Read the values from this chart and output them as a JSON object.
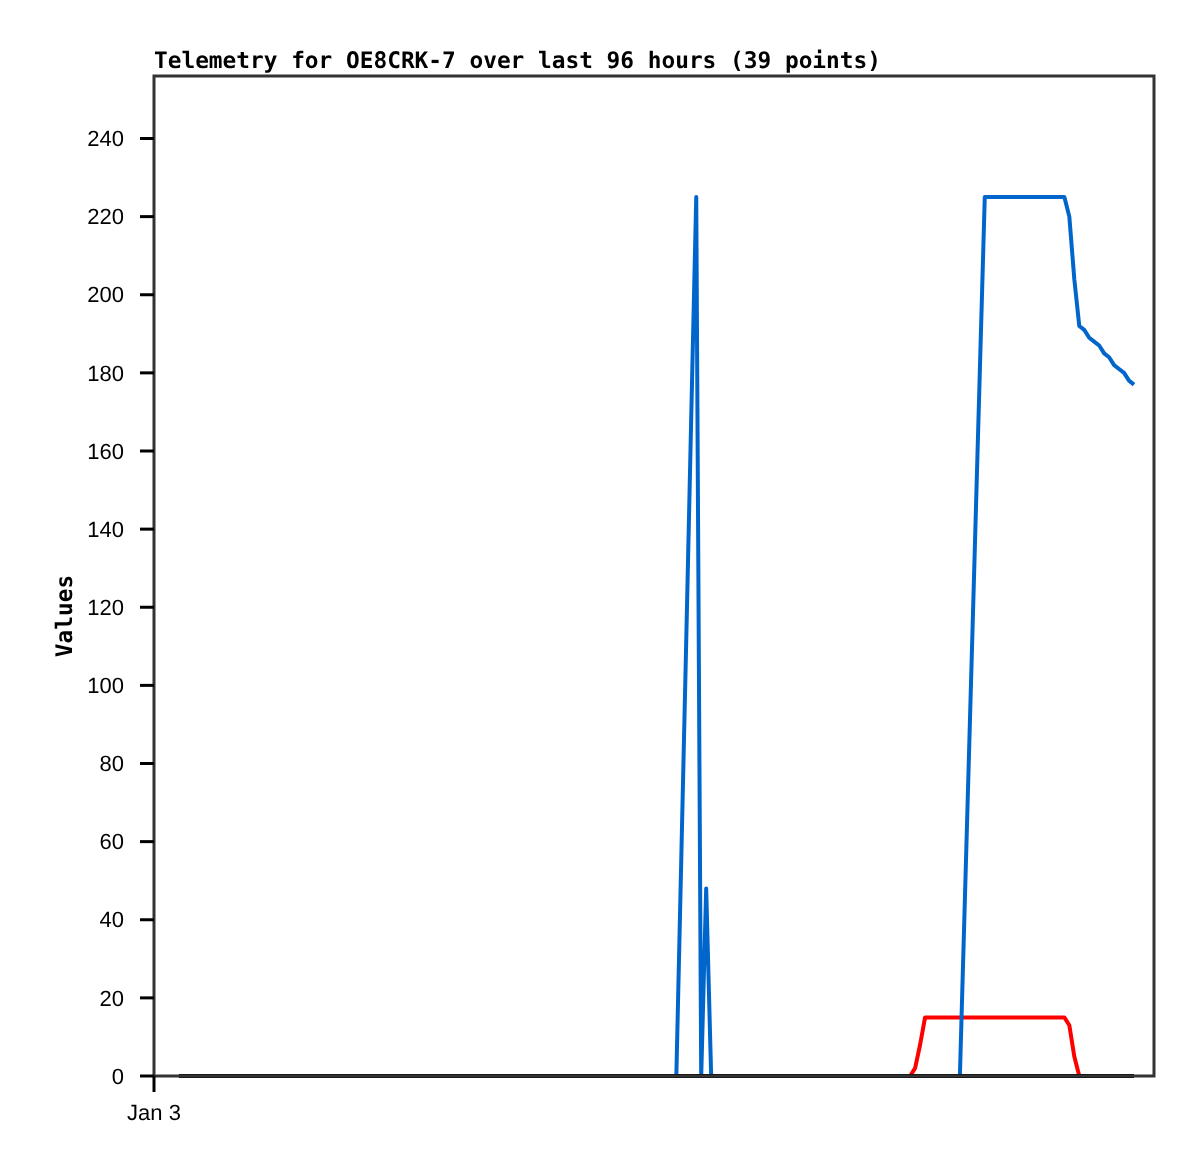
{
  "chart_data": {
    "type": "line",
    "title": "Telemetry for OE8CRK-7 over last 96 hours (39 points)",
    "ylabel": "Values",
    "categories": [
      "Jan 3",
      null,
      null,
      null,
      null,
      null,
      null,
      null,
      null,
      null,
      null,
      null,
      null,
      null,
      null,
      null,
      null,
      null,
      null,
      null,
      null,
      null,
      null,
      null,
      null,
      null,
      null,
      null,
      null,
      null,
      null,
      null,
      null,
      null,
      null,
      null,
      null,
      null,
      null,
      null,
      null,
      null,
      null,
      null,
      null,
      null,
      null,
      null,
      null,
      null,
      null,
      null,
      null,
      null,
      null,
      null,
      null,
      null,
      null,
      null,
      null,
      null,
      null,
      null,
      null,
      null,
      null,
      null,
      null,
      null,
      null,
      null,
      null,
      null,
      null,
      null,
      null,
      null,
      null,
      null,
      null,
      null,
      null,
      null,
      null,
      null,
      null,
      null,
      null,
      null,
      null,
      null,
      null,
      null,
      null,
      null,
      null,
      null,
      null,
      null,
      null,
      null,
      null,
      null,
      null,
      null,
      null,
      null,
      null,
      null,
      null,
      null,
      null,
      null,
      null,
      null,
      null,
      null,
      null,
      null,
      null,
      null,
      null,
      null,
      null,
      null,
      null,
      null,
      null,
      null,
      null,
      null,
      null,
      null,
      null,
      null,
      null,
      null,
      null,
      null,
      null,
      null,
      null,
      null,
      null,
      null,
      null,
      null,
      null,
      null,
      null,
      null,
      null,
      null,
      null,
      null,
      null,
      null,
      null,
      null,
      null,
      null,
      null,
      null,
      null,
      null,
      null,
      null,
      null,
      null,
      null,
      null,
      null,
      null,
      null,
      null,
      null,
      null,
      null,
      null,
      null,
      null,
      null,
      null,
      null,
      null,
      null,
      null,
      null,
      null,
      null,
      null,
      null,
      null,
      null,
      null,
      null,
      null
    ],
    "ylim": [
      0,
      256
    ],
    "yticks": [
      0,
      20,
      40,
      60,
      80,
      100,
      120,
      140,
      160,
      180,
      200,
      220,
      240
    ],
    "series": [
      {
        "color": "#ff0000",
        "values": [
          null,
          null,
          null,
          null,
          null,
          null,
          null,
          null,
          null,
          null,
          null,
          null,
          null,
          null,
          null,
          null,
          null,
          null,
          null,
          null,
          null,
          null,
          null,
          null,
          null,
          null,
          null,
          null,
          null,
          null,
          null,
          null,
          null,
          null,
          null,
          null,
          null,
          null,
          null,
          null,
          null,
          null,
          null,
          null,
          null,
          null,
          null,
          null,
          null,
          null,
          null,
          null,
          null,
          null,
          null,
          null,
          null,
          null,
          null,
          null,
          null,
          null,
          null,
          null,
          null,
          null,
          null,
          null,
          null,
          null,
          null,
          null,
          null,
          null,
          null,
          null,
          null,
          null,
          null,
          null,
          null,
          null,
          null,
          null,
          null,
          null,
          null,
          null,
          null,
          null,
          null,
          null,
          null,
          null,
          null,
          null,
          null,
          null,
          null,
          null,
          null,
          null,
          null,
          null,
          null,
          null,
          null,
          null,
          null,
          null,
          null,
          null,
          null,
          null,
          null,
          null,
          null,
          null,
          null,
          null,
          null,
          null,
          null,
          null,
          null,
          null,
          null,
          null,
          null,
          null,
          null,
          null,
          null,
          null,
          null,
          null,
          null,
          null,
          null,
          null,
          null,
          null,
          null,
          null,
          null,
          null,
          null,
          null,
          null,
          null,
          null,
          null,
          0,
          2,
          8,
          15,
          15,
          15,
          15,
          15,
          15,
          15,
          15,
          15,
          15,
          15,
          15,
          15,
          15,
          15,
          15,
          15,
          15,
          15,
          15,
          15,
          15,
          15,
          15,
          15,
          15,
          15,
          15,
          15,
          13,
          5,
          0,
          null,
          null,
          null,
          null,
          null,
          null,
          null,
          null,
          null,
          null,
          null
        ]
      },
      {
        "color": "#0066cc",
        "values": [
          null,
          null,
          null,
          null,
          null,
          null,
          null,
          null,
          null,
          null,
          null,
          null,
          null,
          null,
          null,
          null,
          null,
          null,
          null,
          null,
          null,
          null,
          null,
          null,
          null,
          null,
          null,
          null,
          null,
          null,
          null,
          null,
          null,
          null,
          null,
          null,
          null,
          null,
          null,
          null,
          null,
          null,
          null,
          null,
          null,
          null,
          null,
          null,
          null,
          null,
          null,
          null,
          null,
          null,
          null,
          null,
          null,
          null,
          null,
          null,
          null,
          null,
          null,
          null,
          null,
          null,
          null,
          null,
          null,
          null,
          null,
          null,
          null,
          null,
          null,
          null,
          null,
          null,
          null,
          null,
          null,
          null,
          null,
          null,
          null,
          null,
          null,
          null,
          null,
          null,
          null,
          null,
          null,
          null,
          null,
          null,
          null,
          null,
          null,
          null,
          null,
          null,
          null,
          null,
          null,
          0,
          56,
          112,
          169,
          225,
          0,
          48,
          0,
          null,
          null,
          null,
          null,
          null,
          null,
          null,
          null,
          null,
          null,
          null,
          null,
          null,
          null,
          null,
          null,
          null,
          null,
          null,
          null,
          null,
          null,
          null,
          null,
          null,
          null,
          null,
          null,
          null,
          null,
          null,
          null,
          null,
          null,
          null,
          null,
          null,
          null,
          null,
          null,
          null,
          null,
          null,
          null,
          null,
          null,
          null,
          null,
          null,
          0,
          45,
          90,
          135,
          180,
          225,
          225,
          225,
          225,
          225,
          225,
          225,
          225,
          225,
          225,
          225,
          225,
          225,
          225,
          225,
          225,
          225,
          220,
          204,
          192,
          191,
          189,
          188,
          187,
          185,
          184,
          182,
          181,
          180,
          178,
          177
        ]
      },
      {
        "color": "#000000",
        "values": [
          null,
          null,
          null,
          null,
          null,
          0,
          0,
          0,
          0,
          0,
          0,
          0,
          0,
          0,
          0,
          0,
          0,
          0,
          0,
          0,
          0,
          0,
          0,
          0,
          0,
          0,
          0,
          0,
          0,
          0,
          0,
          0,
          0,
          0,
          0,
          0,
          0,
          0,
          0,
          0,
          0,
          0,
          0,
          0,
          0,
          0,
          0,
          0,
          0,
          0,
          0,
          0,
          0,
          0,
          0,
          0,
          0,
          0,
          0,
          0,
          0,
          0,
          0,
          0,
          0,
          0,
          0,
          0,
          0,
          0,
          0,
          0,
          0,
          0,
          0,
          0,
          0,
          0,
          0,
          0,
          0,
          0,
          0,
          0,
          0,
          0,
          0,
          0,
          0,
          0,
          0,
          0,
          0,
          0,
          0,
          0,
          0,
          0,
          0,
          0,
          0,
          0,
          0,
          0,
          0,
          0,
          0,
          0,
          0,
          0,
          0,
          0,
          0,
          0,
          0,
          0,
          0,
          0,
          0,
          0,
          0,
          0,
          0,
          0,
          0,
          0,
          0,
          0,
          0,
          0,
          0,
          0,
          0,
          0,
          0,
          0,
          0,
          0,
          0,
          0,
          0,
          0,
          0,
          0,
          0,
          0,
          0,
          0,
          0,
          0,
          0,
          0,
          0,
          0,
          0,
          0,
          0,
          0,
          0,
          0,
          0,
          0,
          0,
          0,
          0,
          0,
          0,
          0,
          0,
          0,
          0,
          0,
          0,
          0,
          0,
          0,
          0,
          0,
          0,
          0,
          0,
          0,
          0,
          0,
          0,
          0,
          0,
          0,
          0,
          0,
          0,
          0,
          0,
          0,
          0,
          0,
          0,
          0
        ]
      }
    ]
  }
}
